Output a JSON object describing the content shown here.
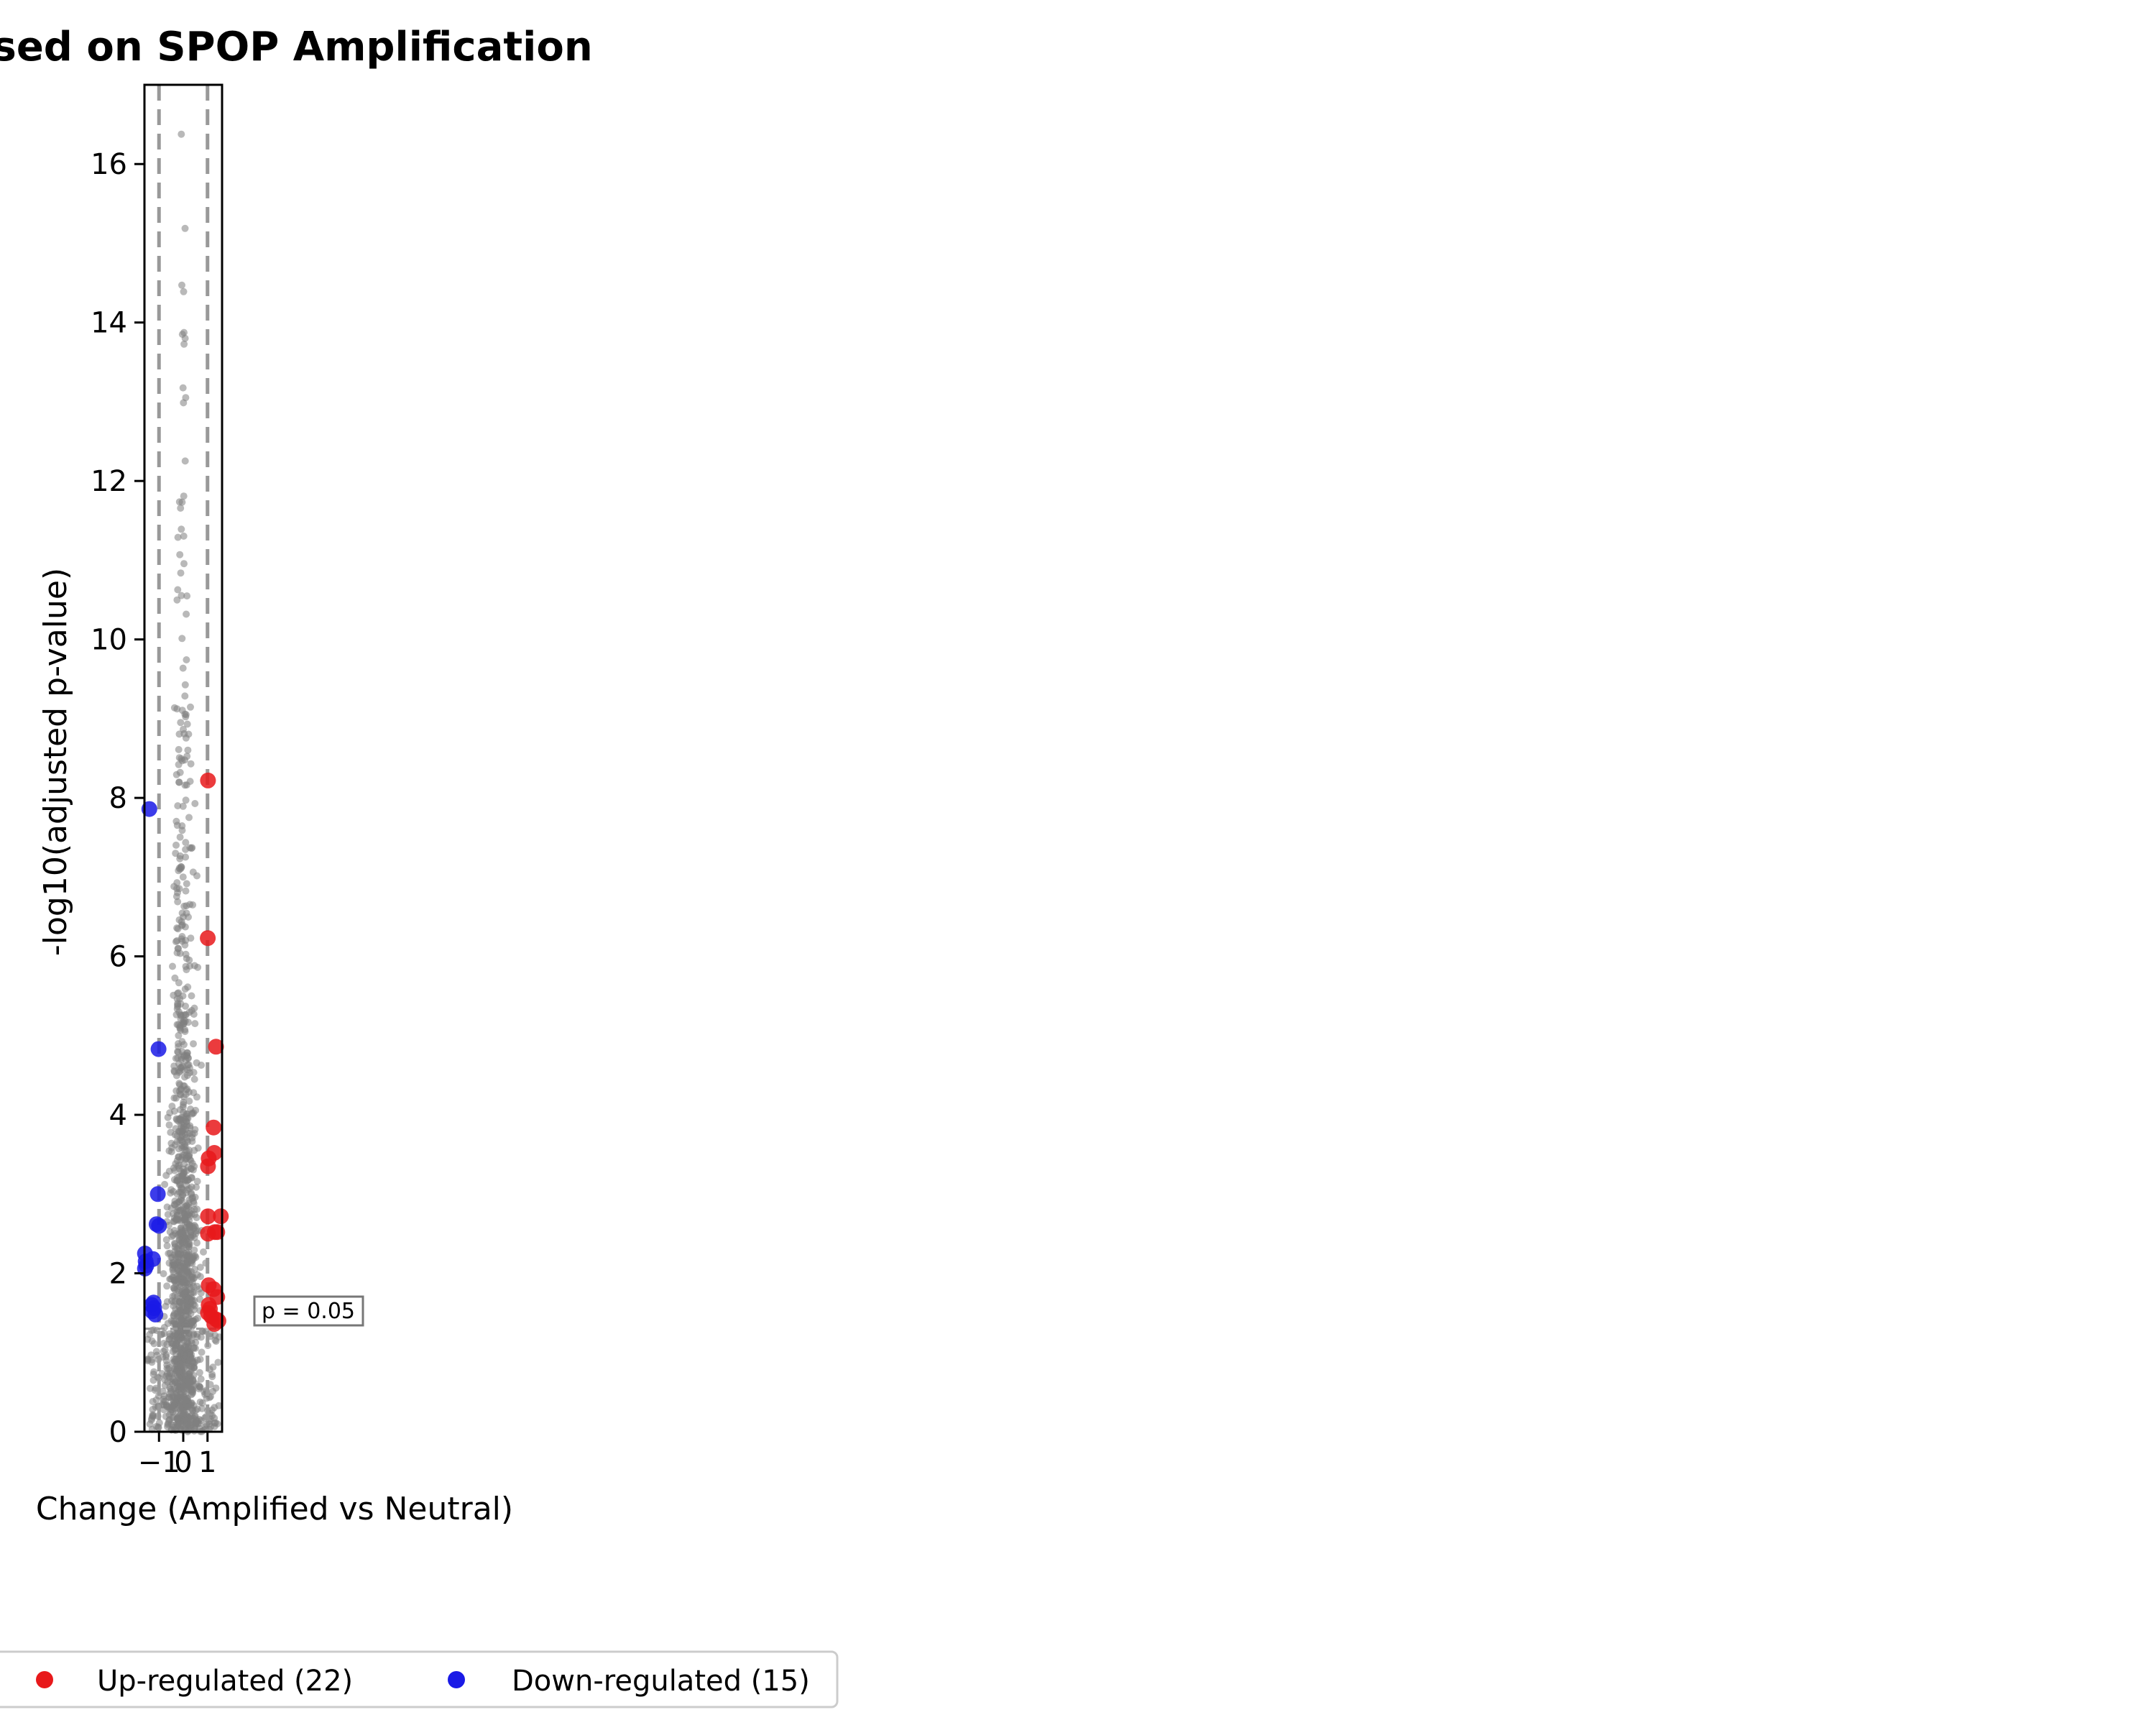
{
  "chart_data": {
    "type": "scatter",
    "title": "ssion Based on SPOP Amplification",
    "xlabel": "Change (Amplified vs Neutral)",
    "ylabel": "-log10(adjusted p-value)",
    "xlim": [
      -1.6,
      1.6
    ],
    "ylim": [
      0,
      17
    ],
    "x_ticks": [
      -1,
      0,
      1
    ],
    "x_tick_labels": [
      "−1",
      "0",
      "1"
    ],
    "y_ticks": [
      0,
      2,
      4,
      6,
      8,
      10,
      12,
      14,
      16
    ],
    "y_tick_labels": [
      "0",
      "2",
      "4",
      "6",
      "8",
      "10",
      "12",
      "14",
      "16"
    ],
    "fold_change_thresholds": [
      -1,
      1
    ],
    "significance_line": 1.301,
    "annotation": "p = 0.05",
    "legend_position": "bottom",
    "colors": {
      "up": "#e8191b",
      "down": "#1a1ae6",
      "ns": "#808080",
      "threshold": "#999999"
    },
    "series": [
      {
        "name": "Up-regulated (22)",
        "color": "#e8191b",
        "points": [
          [
            1.02,
            8.22
          ],
          [
            1.01,
            6.23
          ],
          [
            1.35,
            4.86
          ],
          [
            1.25,
            3.84
          ],
          [
            1.28,
            3.52
          ],
          [
            1.05,
            3.45
          ],
          [
            1.02,
            3.35
          ],
          [
            1.55,
            2.72
          ],
          [
            1.02,
            2.72
          ],
          [
            1.4,
            2.52
          ],
          [
            1.02,
            2.5
          ],
          [
            1.3,
            2.52
          ],
          [
            1.05,
            1.85
          ],
          [
            1.25,
            1.8
          ],
          [
            1.4,
            1.7
          ],
          [
            1.05,
            1.6
          ],
          [
            1.02,
            1.5
          ],
          [
            1.15,
            1.46
          ],
          [
            1.35,
            1.42
          ],
          [
            1.28,
            1.36
          ],
          [
            1.45,
            1.4
          ],
          [
            1.1,
            1.55
          ]
        ]
      },
      {
        "name": "Down-regulated (15)",
        "color": "#1a1ae6",
        "points": [
          [
            -1.4,
            7.86
          ],
          [
            -1.02,
            4.83
          ],
          [
            -1.05,
            3.0
          ],
          [
            -1.0,
            2.6
          ],
          [
            -1.58,
            2.25
          ],
          [
            -1.25,
            2.18
          ],
          [
            -1.52,
            2.1
          ],
          [
            -1.58,
            2.06
          ],
          [
            -1.22,
            1.63
          ],
          [
            -1.28,
            1.52
          ],
          [
            -1.15,
            1.48
          ],
          [
            -1.2,
            1.56
          ],
          [
            -1.55,
            2.15
          ],
          [
            -1.1,
            2.62
          ],
          [
            -1.3,
            1.6
          ]
        ]
      }
    ],
    "background_series": {
      "name": "Not significant",
      "color": "#808080",
      "count": 1400
    }
  }
}
